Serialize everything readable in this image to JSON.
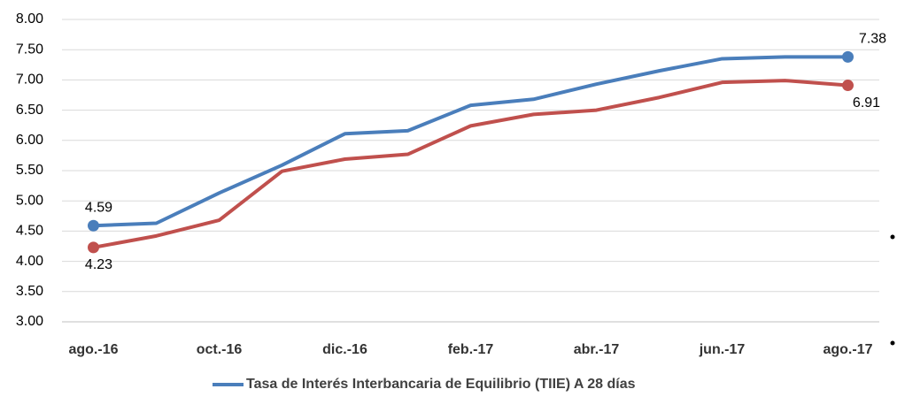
{
  "chart_data": {
    "type": "line",
    "categories": [
      "ago.-16",
      null,
      "oct.-16",
      null,
      "dic.-16",
      null,
      "feb.-17",
      null,
      "abr.-17",
      null,
      "jun.-17",
      null,
      "ago.-17"
    ],
    "series": [
      {
        "name": "Tasa de Interés Interbancaria de Equilibrio (TIIE) A 28 días",
        "color": "#4a7ebb",
        "values": [
          4.59,
          4.63,
          5.13,
          5.59,
          6.11,
          6.16,
          6.58,
          6.68,
          6.93,
          7.15,
          7.35,
          7.38,
          7.38
        ],
        "value_labels": [
          "4.59",
          null,
          null,
          null,
          null,
          null,
          null,
          null,
          null,
          null,
          null,
          null,
          "7.38"
        ]
      },
      {
        "color": "#c0504d",
        "values": [
          4.23,
          4.42,
          4.68,
          5.49,
          5.69,
          5.77,
          6.24,
          6.43,
          6.5,
          6.71,
          6.96,
          6.99,
          6.91
        ],
        "value_labels": [
          "4.23",
          null,
          null,
          null,
          null,
          null,
          null,
          null,
          null,
          null,
          null,
          null,
          "6.91"
        ]
      }
    ],
    "ylim": [
      3,
      8
    ],
    "yticks": [
      {
        "value": 3,
        "label": "3.00"
      },
      {
        "value": 3.5,
        "label": "3.50"
      },
      {
        "value": 4,
        "label": "4.00"
      },
      {
        "value": 4.5,
        "label": "4.50"
      },
      {
        "value": 5,
        "label": "5.00"
      },
      {
        "value": 5.5,
        "label": "5.50"
      },
      {
        "value": 6,
        "label": "6.00"
      },
      {
        "value": 6.5,
        "label": "6.50"
      },
      {
        "value": 7,
        "label": "7.00"
      },
      {
        "value": 7.5,
        "label": "7.50"
      },
      {
        "value": 8,
        "label": "8.00"
      }
    ],
    "grid": true
  }
}
